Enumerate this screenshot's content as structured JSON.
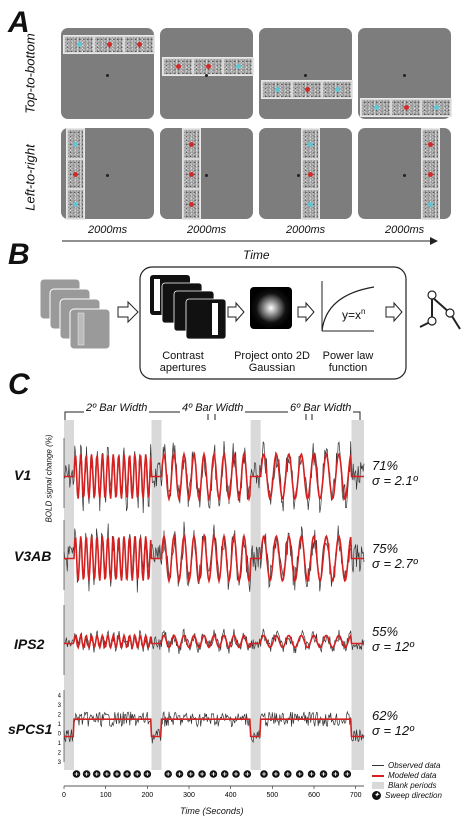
{
  "panels": {
    "a": "A",
    "b": "B",
    "c": "C"
  },
  "panel_a": {
    "row_labels": [
      "Top-to-bottom",
      "Left-to-right"
    ],
    "time_labels": [
      "2000ms",
      "2000ms",
      "2000ms",
      "2000ms"
    ],
    "time_axis_label": "Time"
  },
  "panel_b": {
    "steps": [
      "Contrast apertures",
      "Project onto 2D Gaussian",
      "Power law function"
    ],
    "formula_base": "y=x",
    "formula_exp": "n"
  },
  "panel_c": {
    "bar_widths": [
      "2º Bar Width",
      "4º Bar Width",
      "6º Bar Width"
    ],
    "ylabel": "BOLD signal change (%)",
    "xlabel": "Time (Seconds)",
    "regions": [
      {
        "name": "V1",
        "percent": "71%",
        "sigma": "σ = 2.1º"
      },
      {
        "name": "V3AB",
        "percent": "75%",
        "sigma": "σ = 2.7º"
      },
      {
        "name": "IPS2",
        "percent": "55%",
        "sigma": "σ = 12º"
      },
      {
        "name": "sPCS1",
        "percent": "62%",
        "sigma": "σ = 12º"
      }
    ],
    "legend": [
      "Observed data",
      "Modeled data",
      "Blank periods",
      "Sweep direction"
    ],
    "colors": {
      "observed": "#333333",
      "modeled": "#d42020",
      "blank": "#d9d9d9"
    }
  },
  "chart_data": {
    "type": "line",
    "xlabel": "Time (Seconds)",
    "ylabel": "BOLD signal change (%)",
    "xlim": [
      0,
      720
    ],
    "x_ticks": [
      0,
      100,
      200,
      300,
      400,
      500,
      600,
      700
    ],
    "y_ticks": [
      -3,
      -2,
      -1,
      0,
      1,
      2,
      3,
      4
    ],
    "blank_periods": [
      [
        0,
        24
      ],
      [
        210,
        234
      ],
      [
        448,
        472
      ],
      [
        690,
        720
      ]
    ],
    "series": [
      {
        "name": "Observed data",
        "color": "#333333"
      },
      {
        "name": "Modeled data",
        "color": "#d42020"
      }
    ]
  }
}
